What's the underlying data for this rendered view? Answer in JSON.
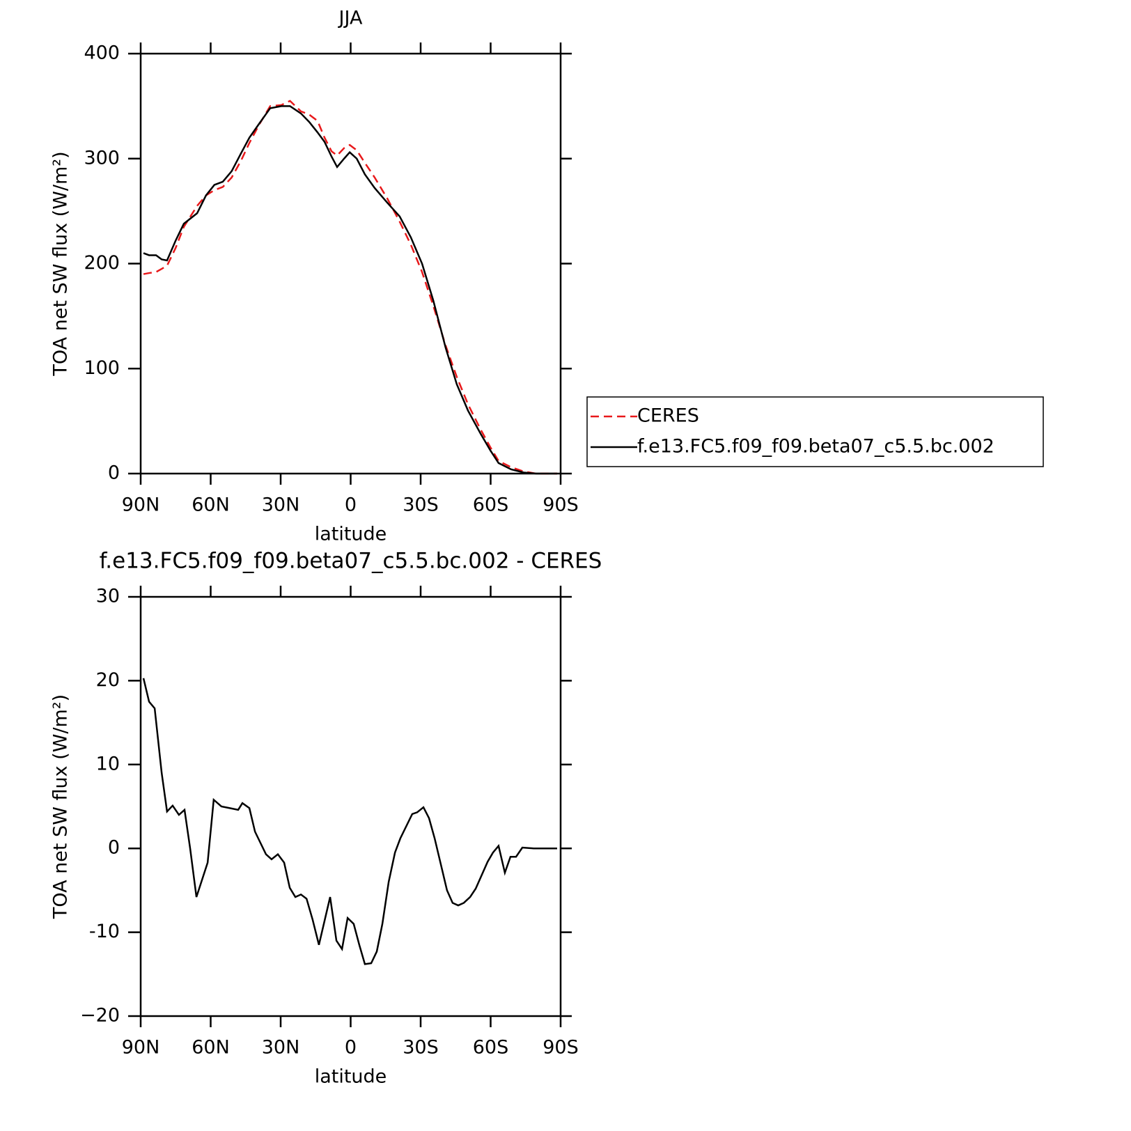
{
  "chart_data": [
    {
      "type": "line",
      "title": "JJA",
      "xlabel": "latitude",
      "ylabel": "TOA net SW flux (W/m²)",
      "x": [
        88.8,
        86.4,
        83.4,
        81,
        78.7,
        75,
        71.5,
        65.8,
        62,
        58.4,
        54.8,
        51,
        47,
        43.4,
        39.3,
        34.5,
        29.7,
        26,
        21.3,
        17.8,
        14.2,
        11.2,
        8.2,
        5.8,
        2.8,
        0.4,
        -2.6,
        -6.1,
        -10.3,
        -15.7,
        -21,
        -25.8,
        -30.6,
        -35.4,
        -40.7,
        -45.5,
        -50.3,
        -55.7,
        -59.9,
        -63.4,
        -68.8,
        -74.2,
        -79.6,
        -88.5
      ],
      "series": [
        {
          "name": "CERES",
          "color": "#e8191b",
          "linestyle": "dashed",
          "values": [
            190,
            191,
            192,
            195,
            198,
            215,
            235,
            255,
            265,
            270,
            273,
            282,
            298,
            315,
            332,
            350,
            351,
            355,
            345,
            342,
            336,
            320,
            307,
            303,
            310,
            313,
            308,
            296,
            282,
            262,
            240,
            218,
            192,
            160,
            122,
            92,
            66,
            42,
            25,
            12,
            6,
            2,
            0,
            0
          ]
        },
        {
          "name": "f.e13.FC5.f09_f09.beta07_c5.5.bc.002",
          "color": "#000000",
          "linestyle": "solid",
          "values": [
            210,
            208,
            208,
            204,
            203,
            222,
            238,
            248,
            265,
            275,
            278,
            288,
            305,
            320,
            333,
            348,
            350,
            350,
            343,
            335,
            325,
            316,
            302,
            292,
            300,
            306,
            300,
            285,
            272,
            258,
            245,
            225,
            200,
            165,
            120,
            85,
            60,
            38,
            22,
            10,
            4,
            1,
            0,
            0
          ]
        }
      ],
      "xlim": [
        90,
        -90
      ],
      "xticks": [
        {
          "value": 90,
          "label": "90N"
        },
        {
          "value": 60,
          "label": "60N"
        },
        {
          "value": 30,
          "label": "30N"
        },
        0,
        {
          "value": -30,
          "label": "30S"
        },
        {
          "value": -60,
          "label": "60S"
        },
        {
          "value": -90,
          "label": "90S"
        }
      ],
      "ylim": [
        0,
        400
      ],
      "yticks": [
        0,
        100,
        200,
        300,
        400
      ],
      "legend": "right"
    },
    {
      "type": "line",
      "title": "f.e13.FC5.f09_f09.beta07_c5.5.bc.002 - CERES",
      "xlabel": "latitude",
      "ylabel": "TOA net SW flux (W/m²)",
      "x": [
        88.8,
        86.4,
        84,
        81,
        78.7,
        76.3,
        73.6,
        71.2,
        68.8,
        66.1,
        61.3,
        58.7,
        55.4,
        51.8,
        48.2,
        46.4,
        43.4,
        41,
        36.3,
        33.9,
        31.2,
        28.5,
        26.1,
        23.7,
        21.3,
        18.9,
        16.3,
        13.6,
        8.8,
        6.1,
        3.7,
        1.3,
        -1.3,
        -3.7,
        -6.1,
        -8.8,
        -11.2,
        -13.6,
        -16.3,
        -19,
        -21.3,
        -26.4,
        -28.5,
        -31.2,
        -33.6,
        -36,
        -41.3,
        -43.7,
        -46.1,
        -48.5,
        -51.2,
        -53.6,
        -58.7,
        -61,
        -63.4,
        -66.1,
        -68.5,
        -70.9,
        -73.6,
        -78.4,
        -81,
        -88.5
      ],
      "color": "#000000",
      "values": [
        20.3,
        17.5,
        16.7,
        9,
        4.4,
        5.1,
        4,
        4.6,
        0,
        -5.8,
        -1.7,
        5.8,
        5,
        4.8,
        4.6,
        5.4,
        4.8,
        2,
        -0.7,
        -1.3,
        -0.7,
        -1.7,
        -4.7,
        -5.8,
        -5.5,
        -6,
        -8.5,
        -11.5,
        -5.8,
        -11,
        -12,
        -8.3,
        -9,
        -11.5,
        -13.8,
        -13.7,
        -12.3,
        -9,
        -4,
        -0.5,
        1.2,
        4.1,
        4.3,
        4.9,
        3.6,
        1.2,
        -5,
        -6.5,
        -6.8,
        -6.5,
        -5.8,
        -4.8,
        -1.6,
        -0.5,
        0.3,
        -2.9,
        -1,
        -1,
        0.1,
        0,
        0,
        0
      ],
      "xlim": [
        90,
        -90
      ],
      "xticks": [
        {
          "value": 90,
          "label": "90N"
        },
        {
          "value": 60,
          "label": "60N"
        },
        {
          "value": 30,
          "label": "30N"
        },
        0,
        {
          "value": -30,
          "label": "30S"
        },
        {
          "value": -60,
          "label": "60S"
        },
        {
          "value": -90,
          "label": "90S"
        }
      ],
      "ylim": [
        -20,
        30
      ],
      "yticks": [
        {
          "value": -20,
          "label": "−20"
        },
        -10,
        0,
        10,
        20,
        30
      ]
    }
  ]
}
